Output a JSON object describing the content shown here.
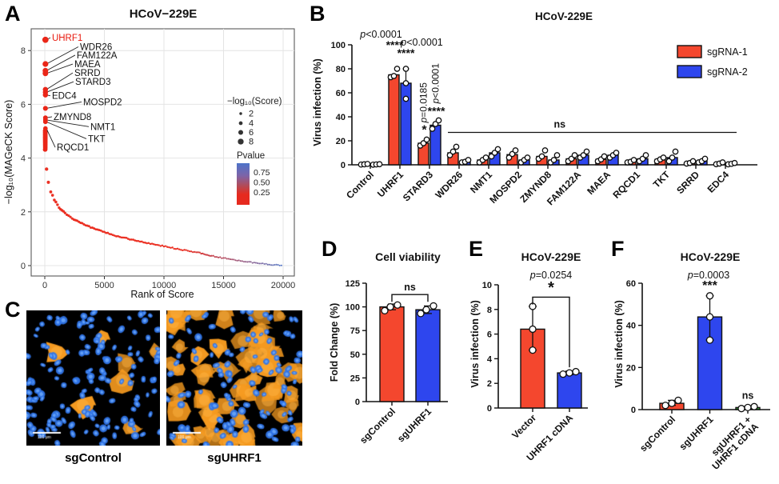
{
  "letters": [
    "A",
    "B",
    "C",
    "D",
    "E",
    "F"
  ],
  "panelC": {
    "scale_bar": "100 μm",
    "background": "#000000",
    "nucleus_color": "#2f74e8",
    "nucleus_highlight": "#7ab5ff",
    "infection_color": "#f59a20",
    "infection_highlight": "#ffb548",
    "images": [
      {
        "label": "sgControl",
        "seed": 20,
        "nuclei": 150,
        "infected_cells": 7
      },
      {
        "label": "sgUHRF1",
        "seed": 77,
        "nuclei": 118,
        "infected_cells": 66
      }
    ]
  },
  "chart_data": [
    {
      "panel": "A",
      "type": "scatter",
      "title": "HCoV−229E",
      "xlabel": "Rank of Score",
      "ylabel": "−log₁₀(MAGeCK Score)",
      "xlim": [
        0,
        20000
      ],
      "ylim": [
        0,
        8.6
      ],
      "xticks": [
        0,
        5000,
        10000,
        15000,
        20000
      ],
      "yticks": [
        0,
        2,
        4,
        6,
        8
      ],
      "grid": true,
      "point_color_low_rank": "#ea2618",
      "point_color_high_rank": "#4a72c8",
      "size_legend": {
        "title": "−log₁₀(Score)",
        "values": [
          2,
          4,
          6,
          8
        ]
      },
      "color_legend": {
        "title": "Pvalue",
        "labels": [
          "0.75",
          "0.50",
          "0.25"
        ]
      },
      "curve": [
        [
          0,
          4.3
        ],
        [
          150,
          3.6
        ],
        [
          300,
          3.1
        ],
        [
          500,
          2.75
        ],
        [
          800,
          2.45
        ],
        [
          1200,
          2.15
        ],
        [
          1700,
          1.95
        ],
        [
          2300,
          1.75
        ],
        [
          3000,
          1.6
        ],
        [
          4000,
          1.4
        ],
        [
          5000,
          1.25
        ],
        [
          6000,
          1.1
        ],
        [
          7000,
          1.0
        ],
        [
          8000,
          0.9
        ],
        [
          9000,
          0.8
        ],
        [
          10000,
          0.72
        ],
        [
          11000,
          0.63
        ],
        [
          12000,
          0.55
        ],
        [
          13000,
          0.47
        ],
        [
          13500,
          0.42
        ],
        [
          14000,
          0.36
        ],
        [
          15000,
          0.28
        ],
        [
          16000,
          0.2
        ],
        [
          17000,
          0.14
        ],
        [
          18000,
          0.09
        ],
        [
          19000,
          0.04
        ],
        [
          20000,
          0.01
        ]
      ],
      "cluster_scores": [
        5.02,
        4.96,
        4.9,
        4.85,
        4.8,
        4.76,
        4.72,
        4.68,
        4.64,
        4.6,
        4.56,
        4.52,
        4.48,
        4.44,
        4.4,
        4.36,
        4.32
      ],
      "highlighted_genes": [
        {
          "gene": "UHRF1",
          "score": 8.4,
          "label": [
            600,
            8.36
          ],
          "highlight": true
        },
        {
          "gene": "WDR26",
          "score": 7.5,
          "label": [
            2950,
            8.02
          ]
        },
        {
          "gene": "FAM122A",
          "score": 7.25,
          "label": [
            2680,
            7.71
          ]
        },
        {
          "gene": "MAEA",
          "score": 7.15,
          "label": [
            2480,
            7.38
          ]
        },
        {
          "gene": "SRRD",
          "score": 6.55,
          "label": [
            2480,
            7.05
          ]
        },
        {
          "gene": "STARD3",
          "score": 6.45,
          "label": [
            2550,
            6.72
          ]
        },
        {
          "gene": "EDC4",
          "score": 6.35,
          "label": [
            600,
            6.2
          ]
        },
        {
          "gene": "MOSPD2",
          "score": 5.85,
          "label": [
            3220,
            5.97
          ]
        },
        {
          "gene": "ZMYND8",
          "score": 5.5,
          "label": [
            740,
            5.42
          ]
        },
        {
          "gene": "NMT1",
          "score": 5.42,
          "label": [
            3825,
            5.05
          ]
        },
        {
          "gene": "TKT",
          "score": 5.35,
          "label": [
            3620,
            4.6
          ]
        },
        {
          "gene": "RQCD1",
          "score": 5.1,
          "label": [
            1010,
            4.28
          ]
        }
      ]
    },
    {
      "panel": "B",
      "type": "bar",
      "title": "HCoV-229E",
      "ylabel": "Virus infection (%)",
      "ylim": [
        0,
        100
      ],
      "yticks": [
        0,
        20,
        40,
        60,
        80,
        100
      ],
      "categories": [
        "Control",
        "UHRF1",
        "STARD3",
        "WDR26",
        "NMT1",
        "MOSPD2",
        "ZMYND8",
        "FAM122A",
        "MAEA",
        "RQCD1",
        "TKT",
        "SRRD",
        "EDC4"
      ],
      "series": [
        {
          "name": "sgRNA-1",
          "color": "#f4472e",
          "values": [
            0.4,
            75,
            18,
            10,
            4,
            8.5,
            7,
            5,
            4.5,
            2.5,
            4.5,
            1.5,
            1
          ],
          "points": [
            [
              0.2,
              0.4,
              0.7
            ],
            [
              73,
              74,
              80
            ],
            [
              16,
              18,
              21
            ],
            [
              8,
              11,
              15
            ],
            [
              2,
              4,
              6
            ],
            [
              6,
              9,
              12
            ],
            [
              5,
              7,
              12
            ],
            [
              3,
              5,
              8
            ],
            [
              3,
              4.5,
              7
            ],
            [
              2,
              2.5,
              4
            ],
            [
              3,
              4.5,
              6
            ],
            [
              1,
              1.5,
              3
            ],
            [
              0.5,
              1,
              2
            ]
          ]
        },
        {
          "name": "sgRNA-2",
          "color": "#2e46ee",
          "values": [
            0.3,
            68,
            33,
            2.5,
            10,
            4,
            4,
            8,
            8,
            5,
            6,
            3,
            0.8
          ],
          "points": [
            [
              0.1,
              0.3,
              0.5
            ],
            [
              55,
              68,
              80
            ],
            [
              30,
              34,
              37
            ],
            [
              2,
              2.5,
              4
            ],
            [
              7,
              10,
              13
            ],
            [
              2,
              4,
              6
            ],
            [
              2,
              4,
              8
            ],
            [
              6,
              8,
              11
            ],
            [
              6,
              8,
              10
            ],
            [
              3,
              5,
              8
            ],
            [
              3,
              6,
              11
            ],
            [
              2,
              3,
              5
            ],
            [
              0.4,
              0.8,
              1.5
            ]
          ]
        }
      ],
      "annotations": [
        {
          "series": 0,
          "cat": 1,
          "text": "p<0.0001",
          "stars": "****",
          "rotate": false
        },
        {
          "series": 1,
          "cat": 1,
          "text": "p<0.0001",
          "stars": "****",
          "rotate": false
        },
        {
          "series": 0,
          "cat": 2,
          "text": "p=0.0185",
          "stars": "*",
          "rotate": true
        },
        {
          "series": 1,
          "cat": 2,
          "text": "p<0.0001",
          "stars": "****",
          "rotate": true
        }
      ],
      "ns_line": {
        "from": 3,
        "to": 12,
        "y": 27,
        "label": "ns",
        "label_cat": 6.4
      }
    },
    {
      "panel": "D",
      "type": "bar",
      "title": "Cell viability",
      "ylabel": "Fold Change (%)",
      "ylim": [
        0,
        125
      ],
      "yticks": [
        0,
        25,
        50,
        75,
        100,
        125
      ],
      "categories": [
        "sgControl",
        "sgUHRF1"
      ],
      "series": [
        {
          "colors": [
            "#f4472e",
            "#2e46ee"
          ],
          "values": [
            100,
            97
          ],
          "points": [
            [
              96,
              100,
              102
            ],
            [
              93,
              97,
              101
            ]
          ],
          "errors": [
            [
              97,
              103
            ],
            [
              93,
              101
            ]
          ]
        }
      ],
      "bracket": {
        "x1": 0,
        "x2": 1,
        "y": 113,
        "drop": 9,
        "label": "ns"
      }
    },
    {
      "panel": "E",
      "type": "bar",
      "title": "HCoV-229E",
      "ylabel": "Virus infection (%)",
      "ylim": [
        0,
        10
      ],
      "yticks": [
        0,
        2,
        4,
        6,
        8,
        10
      ],
      "categories": [
        "Vector",
        "UHRF1 cDNA"
      ],
      "series": [
        {
          "colors": [
            "#f4472e",
            "#2e46ee"
          ],
          "values": [
            6.4,
            2.85
          ],
          "points": [
            [
              4.7,
              6.4,
              8.25
            ],
            [
              2.75,
              2.85,
              2.95
            ]
          ],
          "errors": [
            [
              4.7,
              8.25
            ],
            [
              2.7,
              3.0
            ]
          ]
        }
      ],
      "p_label": "p=0.0254",
      "stars": "*",
      "gp_bracket": {
        "x1": 0,
        "x2": 1,
        "y": 9.0,
        "drop_left": 0.6,
        "drop_right": 5.7
      }
    },
    {
      "panel": "F",
      "type": "bar",
      "title": "HCoV-229E",
      "ylabel": "Virus infection (%)",
      "ylim": [
        0,
        60
      ],
      "yticks": [
        0,
        20,
        40,
        60
      ],
      "categories": [
        "sgControl",
        "sgUHRF1",
        [
          "sgUHRF1 +",
          "UHRF1 cDNA"
        ]
      ],
      "series": [
        {
          "colors": [
            "#f4472e",
            "#2e46ee",
            "#2ca12c"
          ],
          "values": [
            3,
            44,
            1
          ],
          "points": [
            [
              2,
              3,
              4.4
            ],
            [
              33,
              44,
              54
            ],
            [
              0.5,
              1,
              1.4
            ]
          ],
          "errors": [
            [
              2,
              4.4
            ],
            [
              33,
              54
            ],
            [
              0.4,
              1.5
            ]
          ]
        }
      ],
      "p_label": "p=0.0003",
      "stars": "***",
      "stars_cat": 1,
      "ns_label": {
        "cat": 2,
        "text": "ns"
      }
    }
  ]
}
